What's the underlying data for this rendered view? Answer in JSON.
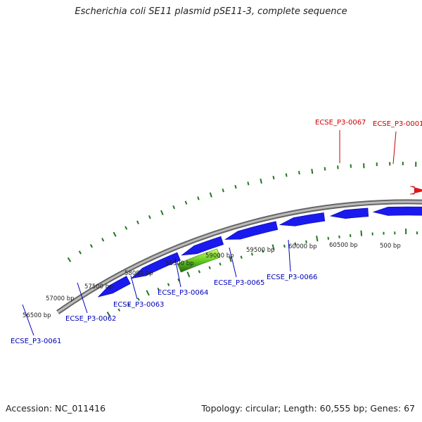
{
  "title": "Escherichia coli SE11 plasmid pSE11-3, complete sequence",
  "footer": {
    "accession": "Accession: NC_011416",
    "summary": "Topology: circular; Length: 60,555 bp; Genes: 67"
  },
  "colors": {
    "forward_label": "#cc0000",
    "reverse_label": "#0000bb",
    "forward_gene": "#ee1111",
    "reverse_gene": "#1a1aee",
    "rna_gene": "#33aa22",
    "highlight_gene": "#22d8e8",
    "tick": "#227722",
    "backbone": "#888888"
  },
  "bp_labels": [
    "56500 bp",
    "57000 bp",
    "57500 bp",
    "58000 bp",
    "58500 bp",
    "59000 bp",
    "59500 bp",
    "60000 bp",
    "60500 bp",
    "500 bp"
  ],
  "forward_genes": [
    {
      "label": "ECSE_P3-0067"
    },
    {
      "label": "ECSE_P3-0001"
    }
  ],
  "reverse_genes": [
    {
      "label": "ECSE_P3-0061"
    },
    {
      "label": "ECSE_P3-0062"
    },
    {
      "label": "ECSE_P3-0063"
    },
    {
      "label": "ECSE_P3-0064"
    },
    {
      "label": "ECSE_P3-0065"
    },
    {
      "label": "ECSE_P3-0066"
    }
  ]
}
